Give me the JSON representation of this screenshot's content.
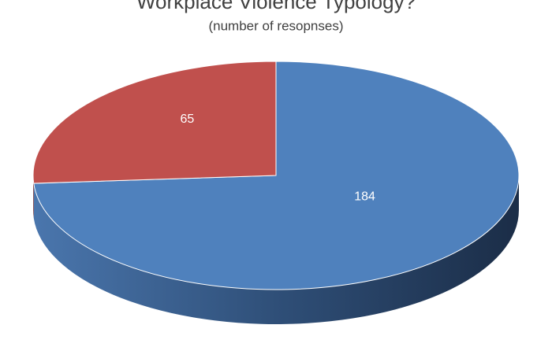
{
  "chart_data": {
    "type": "pie",
    "title": "Workplace Violence Typology?",
    "subtitle": "(number of resopnses)",
    "values": [
      184,
      65
    ],
    "colors": [
      "#4f81bd",
      "#c0504d"
    ]
  }
}
